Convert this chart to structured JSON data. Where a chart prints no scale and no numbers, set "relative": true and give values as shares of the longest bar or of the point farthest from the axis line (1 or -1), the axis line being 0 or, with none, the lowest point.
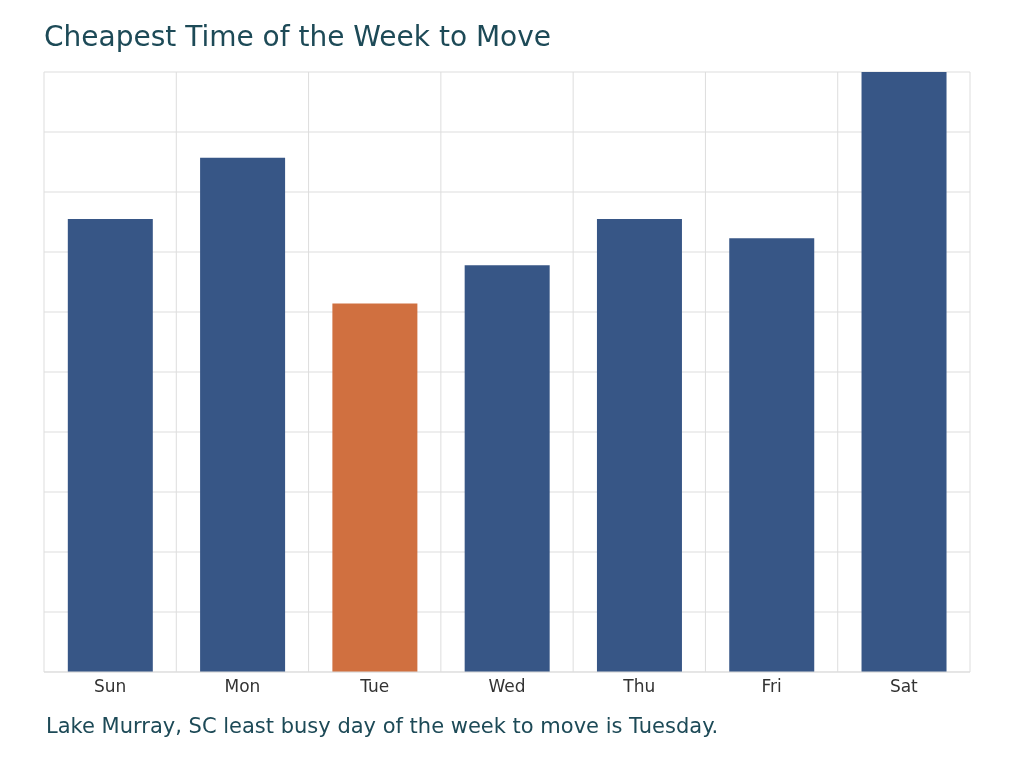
{
  "chart_data": {
    "type": "bar",
    "title": "Cheapest Time of the Week to Move",
    "relative": true,
    "categories": [
      "Sun",
      "Mon",
      "Tue",
      "Wed",
      "Thu",
      "Fri",
      "Sat"
    ],
    "values": [
      0.755,
      0.857,
      0.614,
      0.678,
      0.755,
      0.723,
      1
    ],
    "colors": [
      "#375686",
      "#375686",
      "#d07040",
      "#375686",
      "#375686",
      "#375686",
      "#375686"
    ],
    "grid": true,
    "annotations": [
      "Lake Murray, SC least busy day of the week to move is Tuesday."
    ]
  }
}
